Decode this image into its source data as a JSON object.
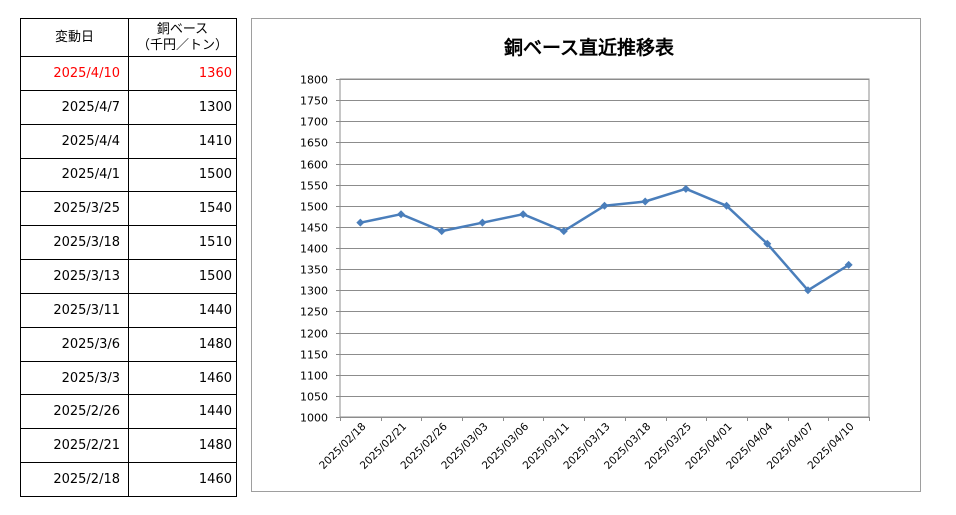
{
  "table": {
    "header_date": "変動日",
    "header_value_line1": "銅ベース",
    "header_value_line2": "（千円／トン）",
    "rows": [
      {
        "date": "2025/4/10",
        "value": "1360"
      },
      {
        "date": "2025/4/7",
        "value": "1300"
      },
      {
        "date": "2025/4/4",
        "value": "1410"
      },
      {
        "date": "2025/4/1",
        "value": "1500"
      },
      {
        "date": "2025/3/25",
        "value": "1540"
      },
      {
        "date": "2025/3/18",
        "value": "1510"
      },
      {
        "date": "2025/3/13",
        "value": "1500"
      },
      {
        "date": "2025/3/11",
        "value": "1440"
      },
      {
        "date": "2025/3/6",
        "value": "1480"
      },
      {
        "date": "2025/3/3",
        "value": "1460"
      },
      {
        "date": "2025/2/26",
        "value": "1440"
      },
      {
        "date": "2025/2/21",
        "value": "1480"
      },
      {
        "date": "2025/2/18",
        "value": "1460"
      }
    ],
    "highlight_color": "#ff0000"
  },
  "chart_data": {
    "type": "line",
    "title": "銅ベース直近推移表",
    "xlabel": "",
    "ylabel": "",
    "categories": [
      "2025/02/18",
      "2025/02/21",
      "2025/02/26",
      "2025/03/03",
      "2025/03/06",
      "2025/03/11",
      "2025/03/13",
      "2025/03/18",
      "2025/03/25",
      "2025/04/01",
      "2025/04/04",
      "2025/04/07",
      "2025/04/10"
    ],
    "series": [
      {
        "values": [
          1460,
          1480,
          1440,
          1460,
          1480,
          1440,
          1500,
          1510,
          1540,
          1500,
          1410,
          1300,
          1360
        ],
        "color": "#4a7ebb"
      }
    ],
    "ylim": [
      1000,
      1800
    ],
    "ytick_step": 50,
    "grid": true,
    "legend": "none"
  }
}
